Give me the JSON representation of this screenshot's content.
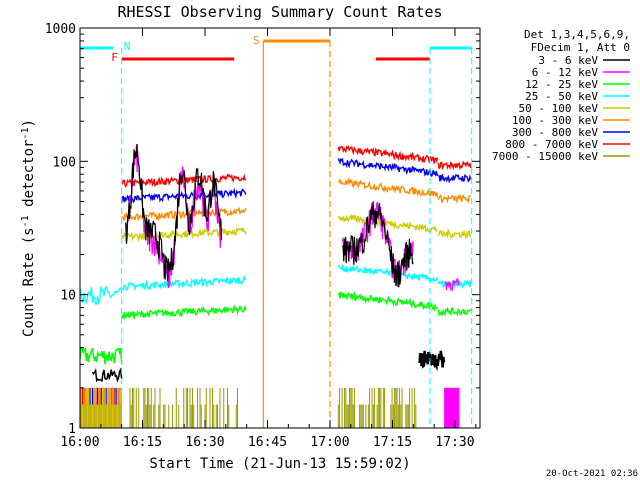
{
  "chart_data": {
    "type": "line",
    "title": "RHESSI Observing Summary Count Rates",
    "xlabel": "Start Time (21-Jun-13 15:59:02)",
    "ylabel": "Count Rate (s⁻¹ detector⁻¹)",
    "ylabel_main": "Count Rate (s",
    "ylabel_sup1": "-1",
    "ylabel_mid": " detector",
    "ylabel_sup2": "-1",
    "ylabel_end": ")",
    "yscale": "log",
    "xlim_minutes": [
      0,
      96
    ],
    "ylim": [
      1,
      1000
    ],
    "x_tick_labels": [
      "16:00",
      "16:15",
      "16:30",
      "16:45",
      "17:00",
      "17:15",
      "17:30"
    ],
    "x_tick_minutes": [
      0,
      15,
      30,
      45,
      60,
      75,
      90
    ],
    "y_tick_labels": [
      "1",
      "10",
      "100",
      "1000"
    ],
    "y_tick_values": [
      1,
      10,
      100,
      1000
    ],
    "legend_header": [
      "Det 1,3,4,5,6,9,",
      "FDecim 1, Att 0"
    ],
    "legend": [
      {
        "label": "3 - 6 keV",
        "color": "#000000"
      },
      {
        "label": "6 - 12 keV",
        "color": "#ff00ff"
      },
      {
        "label": "12 - 25 keV",
        "color": "#00ff00"
      },
      {
        "label": "25 - 50 keV",
        "color": "#00ffff"
      },
      {
        "label": "50 - 100 keV",
        "color": "#cccc00"
      },
      {
        "label": "100 - 300 keV",
        "color": "#ff8c00"
      },
      {
        "label": "300 - 800 keV",
        "color": "#0000ff"
      },
      {
        "label": "800 - 7000 keV",
        "color": "#ff0000"
      },
      {
        "label": "7000 - 15000 keV",
        "color": "#999900"
      }
    ],
    "flag_labels": {
      "N": "N",
      "F": "F",
      "S": "S"
    },
    "flag_colors": {
      "N": "#00ffff",
      "F": "#ff0000",
      "S": "#ff8c00"
    },
    "segments": [
      {
        "x": [
          0,
          10
        ],
        "values": {
          "3 - 6 keV": 2.5,
          "12 - 25 keV": 3.5,
          "25 - 50 keV": 10,
          "50 - 100 keV": 1.5,
          "100 - 300 keV": 1.5,
          "300 - 800 keV": 1.5,
          "800 - 7000 keV": 1.5,
          "7000 - 15000 keV": 1.5
        }
      },
      {
        "x": [
          10,
          40
        ],
        "values": {
          "3 - 6 keV": "variable 25-120",
          "6 - 12 keV": "variable 10-120",
          "12 - 25 keV": 7,
          "25 - 50 keV": 11.5,
          "50 - 100 keV": 27,
          "100 - 300 keV": 38,
          "300 - 800 keV": 52,
          "800 - 7000 keV": 68
        }
      },
      {
        "x": [
          62,
          91
        ],
        "values": {
          "3 - 6 keV": "variable 15-40 then 3.5",
          "6 - 12 keV": "variable 15-45",
          "12 - 25 keV": 10,
          "25 - 50 keV": 16,
          "50 - 100 keV": 38,
          "100 - 300 keV": 70,
          "300 - 800 keV": 100,
          "800 - 7000 keV": 125
        }
      }
    ],
    "flags": [
      {
        "name": "N",
        "start_min": 0,
        "end_min": 8
      },
      {
        "name": "N",
        "start_min": 84,
        "end_min": 94
      },
      {
        "name": "F",
        "start_min": 10,
        "end_min": 37
      },
      {
        "name": "F",
        "start_min": 71,
        "end_min": 84
      },
      {
        "name": "S",
        "start_min": 44,
        "end_min": 60
      }
    ],
    "footer_date": "20-Oct-2021 02:36"
  }
}
